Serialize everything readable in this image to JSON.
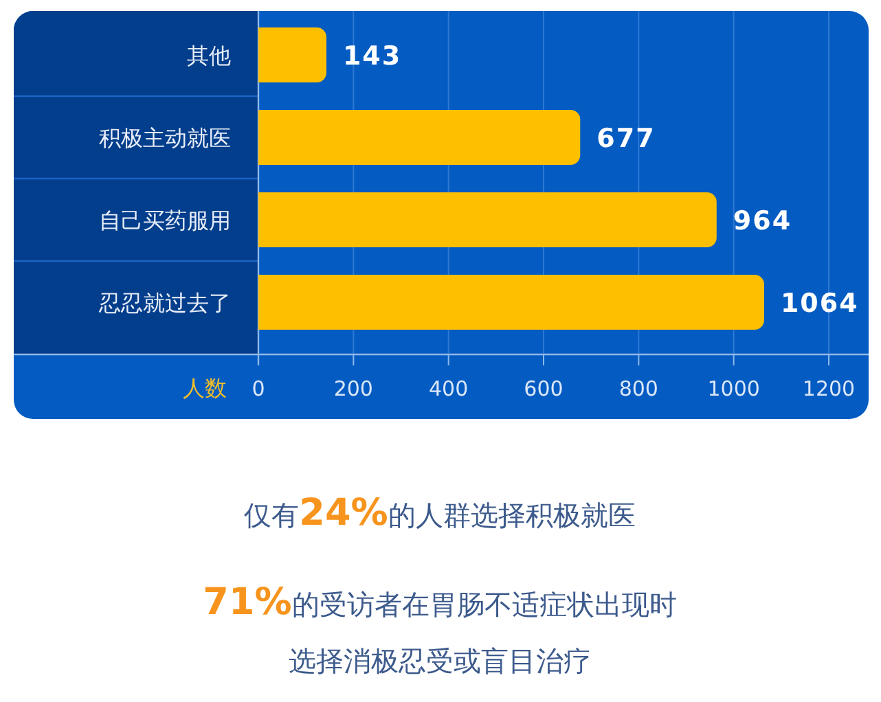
{
  "chart_data": {
    "type": "bar",
    "orientation": "horizontal",
    "categories": [
      "其他",
      "积极主动就医",
      "自己买药服用",
      "忍忍就过去了"
    ],
    "values": [
      143,
      677,
      964,
      1064
    ],
    "color": "#fdbf00",
    "xlabel": "人数",
    "xlim": [
      0,
      1200
    ],
    "xticks": [
      0,
      200,
      400,
      600,
      800,
      1000,
      1200
    ],
    "grid": "x",
    "data_labels": true,
    "annotations": [
      "仅有24%的人群选择积极就医",
      "71%的受访者在胃肠不适症状出现时",
      "选择消极忍受或盲目治疗"
    ]
  }
}
